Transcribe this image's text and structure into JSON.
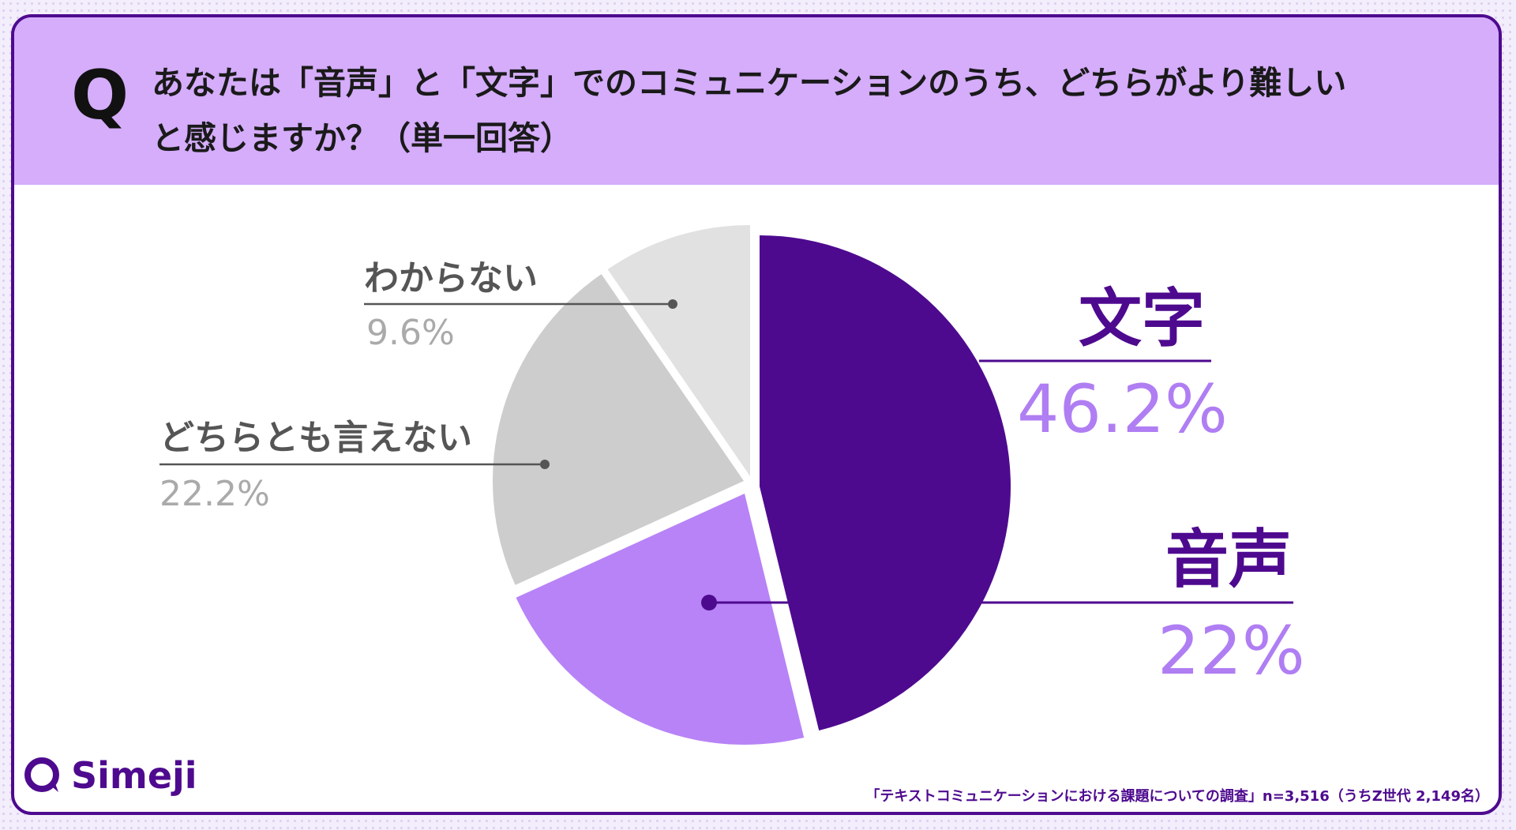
{
  "question": {
    "marker": "Q",
    "line1": "あなたは「音声」と「文字」でのコミュニケーションのうち、どちらがより難しい",
    "line2": "と感じますか？（単一回答）"
  },
  "chart_data": {
    "type": "pie",
    "slices": [
      {
        "label": "文字",
        "value": 46.2,
        "display": "46.2%",
        "color": "#4e0a8f"
      },
      {
        "label": "音声",
        "value": 22,
        "display": "22%",
        "color": "#b883f7"
      },
      {
        "label": "どちらとも言えない",
        "value": 22.2,
        "display": "22.2%",
        "color": "#cdcdcd"
      },
      {
        "label": "わからない",
        "value": 9.6,
        "display": "9.6%",
        "color": "#e1e1e1"
      }
    ]
  },
  "logo": {
    "text": "Simeji"
  },
  "source": "「テキストコミュニケーションにおける課題についての調査」n=3,516（うちZ世代 2,149名）"
}
